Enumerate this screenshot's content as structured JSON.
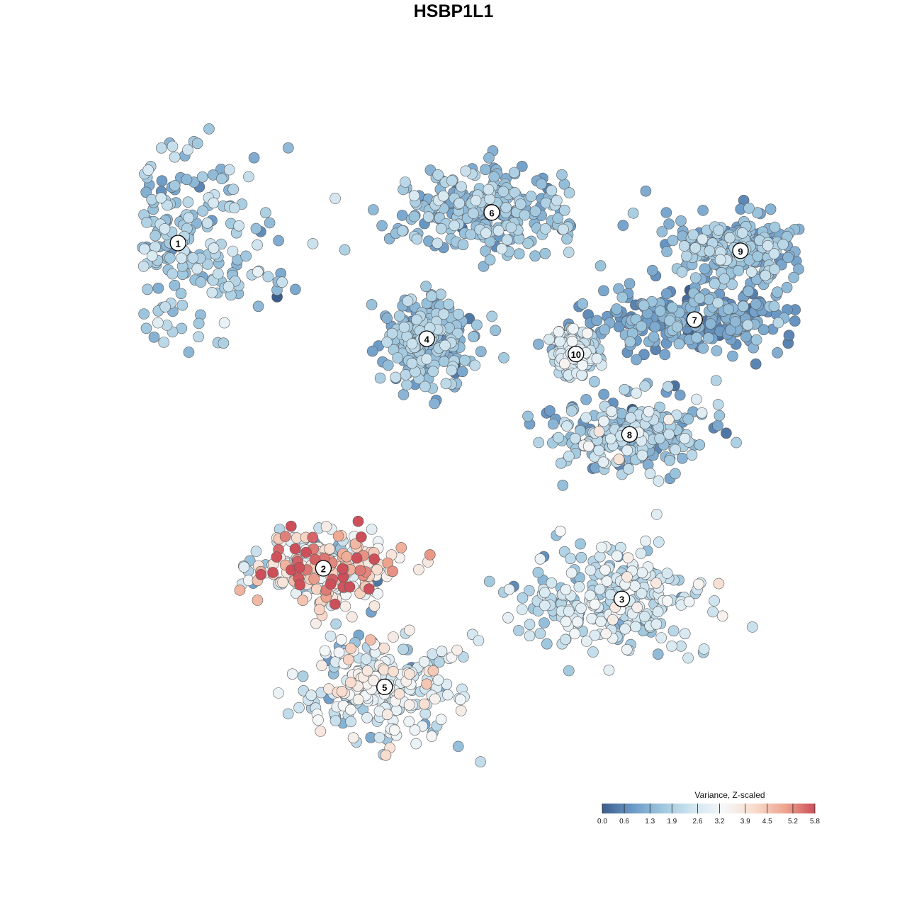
{
  "title": "HSBP1L1",
  "chart_data": {
    "type": "scatter",
    "title": "HSBP1L1",
    "xlabel": "",
    "ylabel": "",
    "grid": false,
    "legend_position": "bottom-right",
    "clusters": [
      {
        "label": "1",
        "x": -0.72,
        "y": 0.55,
        "spread": [
          0.24,
          0.22
        ],
        "mean": 1.7,
        "sd": 0.5
      },
      {
        "label": "2",
        "x": -0.34,
        "y": -0.3,
        "spread": [
          0.16,
          0.09
        ],
        "mean": 3.6,
        "sd": 1.3
      },
      {
        "label": "3",
        "x": 0.44,
        "y": -0.38,
        "spread": [
          0.22,
          0.13
        ],
        "mean": 2.3,
        "sd": 0.6
      },
      {
        "label": "4",
        "x": -0.07,
        "y": 0.3,
        "spread": [
          0.11,
          0.1
        ],
        "mean": 1.4,
        "sd": 0.5
      },
      {
        "label": "5",
        "x": -0.18,
        "y": -0.61,
        "spread": [
          0.18,
          0.12
        ],
        "mean": 2.7,
        "sd": 0.8
      },
      {
        "label": "6",
        "x": 0.1,
        "y": 0.63,
        "spread": [
          0.22,
          0.1
        ],
        "mean": 1.5,
        "sd": 0.5
      },
      {
        "label": "7",
        "x": 0.63,
        "y": 0.35,
        "spread": [
          0.24,
          0.08
        ],
        "mean": 1.0,
        "sd": 0.4
      },
      {
        "label": "8",
        "x": 0.46,
        "y": 0.05,
        "spread": [
          0.18,
          0.09
        ],
        "mean": 1.6,
        "sd": 0.7
      },
      {
        "label": "9",
        "x": 0.75,
        "y": 0.53,
        "spread": [
          0.16,
          0.07
        ],
        "mean": 1.5,
        "sd": 0.5
      },
      {
        "label": "10",
        "x": 0.32,
        "y": 0.26,
        "spread": [
          0.05,
          0.05
        ],
        "mean": 2.0,
        "sd": 0.5
      }
    ],
    "colorbar": {
      "title": "Variance, Z-scaled",
      "min": 0.0,
      "max": 5.8,
      "ticks": [
        "0.0",
        "0.6",
        "1.3",
        "1.9",
        "2.6",
        "3.2",
        "3.9",
        "4.5",
        "5.2",
        "5.8"
      ],
      "colors": [
        "#3b5d8c",
        "#6b9ac7",
        "#9fc7de",
        "#d2e6f0",
        "#f5f7f8",
        "#f8dccd",
        "#eea690",
        "#cd4f5a"
      ]
    }
  }
}
